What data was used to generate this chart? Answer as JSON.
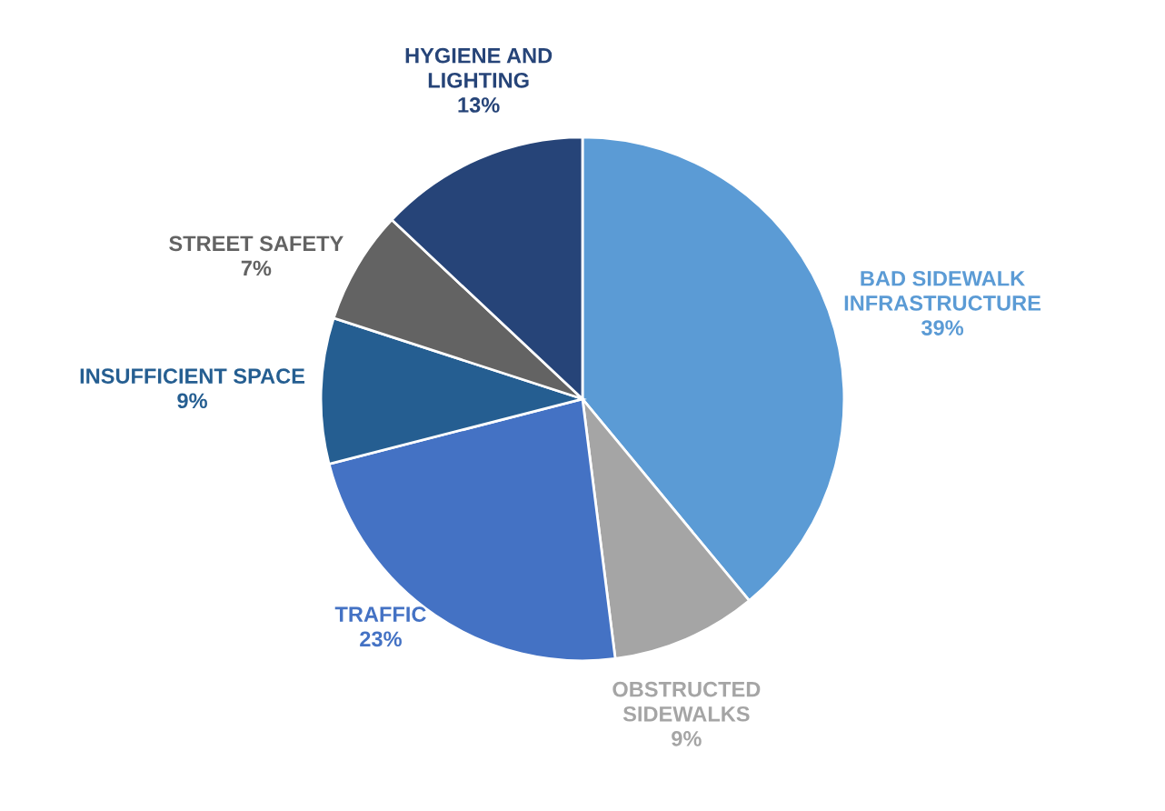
{
  "chart_data": {
    "type": "pie",
    "categories": [
      "BAD SIDEWALK\nINFRASTRUCTURE",
      "OBSTRUCTED\nSIDEWALKS",
      "TRAFFIC",
      "INSUFFICIENT SPACE",
      "STREET SAFETY",
      "HYGIENE AND\nLIGHTING"
    ],
    "values": [
      39,
      9,
      23,
      9,
      7,
      13
    ],
    "value_labels": [
      "39%",
      "9%",
      "23%",
      "9%",
      "7%",
      "13%"
    ],
    "colors": [
      "#5b9bd5",
      "#a5a5a5",
      "#4472c4",
      "#255e91",
      "#636363",
      "#264478"
    ]
  }
}
